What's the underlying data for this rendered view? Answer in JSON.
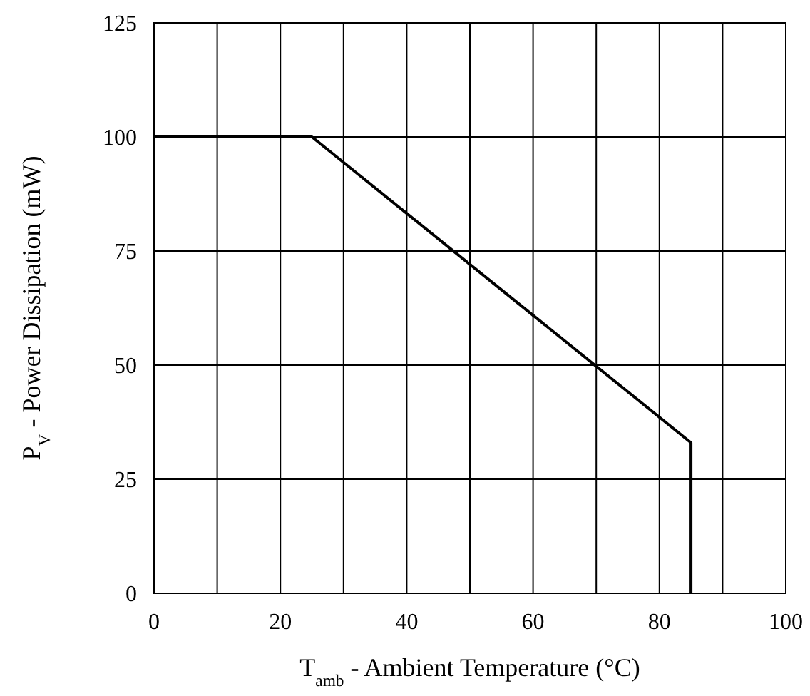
{
  "chart_data": {
    "type": "line",
    "xlabel": "T$_{amb}$ - Ambient Temperature (°C)",
    "ylabel": "P$_{V}$ - Power Dissipation (mW)",
    "x": [
      0,
      25,
      85,
      85
    ],
    "series": [
      {
        "color": "#000000",
        "values": [
          100,
          100,
          33,
          0
        ]
      }
    ],
    "xlim": [
      0,
      100
    ],
    "ylim": [
      0,
      125
    ],
    "xticks": [
      0,
      {
        "value": 10,
        "label": null
      },
      20,
      {
        "value": 30,
        "label": null
      },
      40,
      {
        "value": 50,
        "label": null
      },
      60,
      {
        "value": 70,
        "label": null
      },
      80,
      {
        "value": 90,
        "label": null
      },
      100
    ],
    "yticks": [
      0,
      25,
      50,
      75,
      100,
      125
    ],
    "grid": true,
    "marker": "none",
    "line_style": "solid"
  }
}
